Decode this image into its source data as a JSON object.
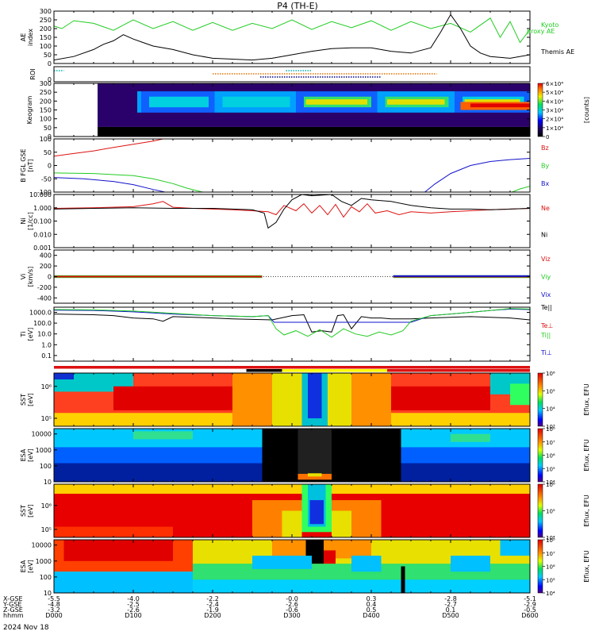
{
  "title": "P4 (TH-E)",
  "date_label": "2024 Nov 18",
  "colors": {
    "green": "#22cc22",
    "red": "#dd1111",
    "blue": "#1111cc",
    "black": "#000000",
    "roi_cyan": "#00b0b0",
    "roi_orange": "#e07000",
    "roi_navy": "#000080"
  },
  "chart_data": [
    {
      "type": "line",
      "panel": "ae",
      "ylabel": "AE index",
      "ylim": [
        0,
        300
      ],
      "yticks": [
        "0",
        "50",
        "100",
        "150",
        "200",
        "250",
        "300"
      ],
      "series": [
        {
          "name": "Kyoto proxy AE",
          "color": "green",
          "x": [
            0,
            0.4,
            1,
            2,
            3,
            4,
            5,
            6,
            7,
            8,
            9,
            10,
            11,
            12,
            13,
            14,
            15,
            16,
            17,
            18,
            19,
            20,
            21,
            22,
            22.5,
            23,
            23.5,
            24
          ],
          "y": [
            215,
            200,
            245,
            230,
            190,
            250,
            200,
            240,
            190,
            235,
            190,
            230,
            200,
            250,
            195,
            240,
            205,
            245,
            190,
            240,
            200,
            230,
            180,
            260,
            150,
            240,
            120,
            195
          ]
        },
        {
          "name": "Themis AE",
          "color": "black",
          "x": [
            0,
            1,
            2,
            2.5,
            3,
            3.5,
            4,
            4.5,
            5,
            6,
            7,
            8,
            9,
            10,
            11,
            12,
            13,
            14,
            15,
            16,
            17,
            18,
            19,
            19.5,
            20,
            20.5,
            21,
            21.5,
            22,
            23,
            24
          ],
          "y": [
            20,
            40,
            80,
            110,
            130,
            165,
            140,
            120,
            100,
            80,
            50,
            30,
            25,
            20,
            30,
            50,
            70,
            85,
            90,
            90,
            70,
            60,
            90,
            180,
            280,
            200,
            100,
            60,
            40,
            30,
            50
          ]
        }
      ]
    },
    {
      "type": "timeline",
      "panel": "roi",
      "ylabel": "ROI",
      "bars": [
        {
          "color": "roi_cyan",
          "x": [
            0,
            0.5
          ],
          "row": 0
        },
        {
          "color": "roi_cyan",
          "x": [
            11.7,
            13
          ],
          "row": 0
        },
        {
          "color": "roi_orange",
          "x": [
            8,
            19.3
          ],
          "row": 1
        },
        {
          "color": "roi_navy",
          "x": [
            10.4,
            16.5
          ],
          "row": 2
        }
      ]
    },
    {
      "type": "heatmap",
      "panel": "keogram",
      "ylabel": "Keogram",
      "ylim": [
        0,
        300
      ],
      "yticks": [
        "0",
        "50",
        "100",
        "150",
        "200",
        "250",
        "300"
      ],
      "zlabel": "[counts]",
      "zticks": [
        "0",
        "1×10⁴",
        "2×10⁴",
        "3×10⁴",
        "4×10⁴",
        "5×10⁴",
        "6×10⁴"
      ]
    },
    {
      "type": "line",
      "panel": "b",
      "ylabel": "B FGL GSE [nT]",
      "ylim": [
        -100,
        100
      ],
      "yticks": [
        "-100",
        "-50",
        "0",
        "50",
        "100"
      ],
      "series": [
        {
          "name": "Bz",
          "color": "red",
          "x": [
            0,
            1,
            2,
            3,
            4,
            5,
            5.5
          ],
          "y": [
            35,
            45,
            55,
            68,
            80,
            92,
            100
          ]
        },
        {
          "name": "By",
          "color": "green",
          "x": [
            0,
            2,
            4,
            5,
            6,
            6.7,
            7.5
          ],
          "y": [
            -28,
            -30,
            -38,
            -50,
            -68,
            -85,
            -100
          ]
        },
        {
          "name": "Bx",
          "color": "blue",
          "x": [
            0,
            1.5,
            3,
            4,
            5,
            5.6
          ],
          "y": [
            -45,
            -50,
            -60,
            -72,
            -90,
            -100
          ]
        },
        {
          "name": "Bx",
          "color": "blue",
          "x": [
            18.7,
            19.2,
            20,
            21,
            22,
            23,
            24
          ],
          "y": [
            -100,
            -70,
            -30,
            0,
            15,
            22,
            27
          ]
        },
        {
          "name": "By",
          "color": "green",
          "x": [
            23.1,
            23.5,
            24
          ],
          "y": [
            -100,
            -88,
            -78
          ]
        }
      ]
    },
    {
      "type": "line",
      "panel": "n",
      "log": true,
      "ylabel": "Ni [1/cc]",
      "ylim": [
        0.001,
        10
      ],
      "yticks": [
        "0.001",
        "0.010",
        "0.100",
        "1.000",
        "10.000"
      ],
      "series": [
        {
          "name": "Ne",
          "color": "red",
          "x": [
            0,
            2,
            4,
            5,
            5.5,
            6,
            7,
            8,
            9,
            10,
            10.8,
            11.2,
            11.6,
            12.2,
            12.6,
            13,
            13.4,
            13.8,
            14.2,
            14.6,
            15,
            15.4,
            15.8,
            16.2,
            16.8,
            17.4,
            18,
            19,
            20,
            21,
            22,
            23,
            24
          ],
          "y": [
            0.9,
            1,
            1.2,
            2,
            3,
            1.1,
            0.9,
            0.8,
            0.7,
            0.6,
            0.5,
            0.3,
            1.5,
            0.6,
            2,
            0.4,
            1.5,
            0.3,
            1.8,
            0.2,
            1.2,
            0.5,
            2,
            0.4,
            0.6,
            0.3,
            0.5,
            0.4,
            0.5,
            0.6,
            0.7,
            0.8,
            0.9
          ]
        },
        {
          "name": "Ni",
          "color": "black",
          "x": [
            0,
            2,
            4,
            6,
            8,
            9,
            10,
            10.6,
            10.8,
            11.2,
            11.6,
            12,
            12.5,
            13,
            14,
            14.5,
            15,
            15.5,
            16,
            17,
            18,
            19,
            20,
            21,
            22,
            23,
            24
          ],
          "y": [
            0.8,
            0.9,
            1,
            0.9,
            0.9,
            0.8,
            0.7,
            0.4,
            0.03,
            0.08,
            0.8,
            4,
            10,
            8,
            10,
            3,
            1.5,
            5,
            4,
            3,
            1.5,
            1,
            0.8,
            0.8,
            0.7,
            0.8,
            0.9
          ]
        }
      ]
    },
    {
      "type": "line",
      "panel": "v",
      "ylabel": "Vi [km/s]",
      "ylim": [
        -500,
        500
      ],
      "yticks": [
        "-400",
        "-200",
        "0",
        "200",
        "400"
      ],
      "series": [
        {
          "name": "Viz",
          "color": "red",
          "x": [
            0,
            10.5
          ],
          "y": [
            0,
            0
          ]
        },
        {
          "name": "Viz",
          "color": "red",
          "x": [
            17.1,
            24
          ],
          "y": [
            0,
            0
          ]
        },
        {
          "name": "Viy",
          "color": "green",
          "x": [
            0,
            24
          ],
          "y": [
            0,
            0
          ]
        },
        {
          "name": "Vix",
          "color": "blue",
          "x": [
            0,
            24
          ],
          "y": [
            0,
            0
          ]
        }
      ]
    },
    {
      "type": "line",
      "panel": "t",
      "log": true,
      "ylabel": "Ti [eV]",
      "ylim": [
        0.03,
        3000
      ],
      "yticks": [
        "0.1",
        "1.0",
        "10.0",
        "100.0",
        "1000.0"
      ],
      "series": [
        {
          "name": "Te",
          "color": "black",
          "x": [
            0,
            2,
            3,
            4,
            5,
            5.5,
            6,
            7,
            8,
            9,
            10,
            11,
            12,
            12.6,
            13,
            13.5,
            14,
            14.3,
            14.6,
            15,
            15.5,
            16,
            16.5,
            17,
            18,
            19,
            20,
            21,
            22,
            23,
            24
          ],
          "y": [
            700,
            600,
            500,
            300,
            250,
            150,
            400,
            350,
            300,
            250,
            220,
            200,
            500,
            600,
            15,
            20,
            15,
            500,
            600,
            30,
            400,
            300,
            300,
            250,
            250,
            300,
            350,
            400,
            350,
            300,
            200
          ]
        },
        {
          "name": "Ti",
          "color": "blue",
          "x": [
            0,
            2,
            4,
            6,
            8,
            10,
            10.8,
            11.1,
            18,
            19,
            20,
            21,
            22,
            23,
            24
          ],
          "y": [
            1600,
            1500,
            1100,
            700,
            500,
            400,
            500,
            120,
            120,
            500,
            700,
            1000,
            1500,
            2000,
            1800
          ]
        },
        {
          "name": "Ti||",
          "color": "green",
          "x": [
            0,
            2,
            4,
            6,
            8,
            10,
            10.8,
            11.2,
            11.6,
            12.2,
            12.8,
            13.4,
            14,
            14.6,
            15.2,
            15.8,
            16.4,
            17,
            17.6,
            18,
            19,
            20,
            21,
            22,
            23,
            24
          ],
          "y": [
            1800,
            1700,
            1300,
            800,
            500,
            400,
            500,
            30,
            8,
            20,
            6,
            25,
            5,
            30,
            10,
            6,
            15,
            8,
            20,
            150,
            500,
            700,
            1000,
            1500,
            2200,
            2000
          ]
        }
      ]
    },
    {
      "type": "timeline",
      "panel": "region",
      "bars": [
        {
          "color": "red",
          "x": [
            0,
            24
          ],
          "row": 0
        },
        {
          "color": "black",
          "x": [
            9.7,
            11.5
          ],
          "row": 1
        },
        {
          "color": "yellow",
          "x": [
            11.5,
            16.8
          ],
          "row": 1
        },
        {
          "color": "red",
          "x": [
            16.8,
            24
          ],
          "row": 1
        }
      ]
    },
    {
      "type": "heatmap",
      "panel": "sst_i",
      "ylabel": "SST [eV]",
      "ylim": [
        50000,
        2000000
      ],
      "yticks": [
        "10⁵",
        "10⁶"
      ],
      "zlabel": "Eflux, EFU",
      "zticks": [
        "10³",
        "10⁴",
        "10⁵",
        "10⁶"
      ]
    },
    {
      "type": "heatmap",
      "panel": "esa_i",
      "ylabel": "ESA [eV]",
      "ylim": [
        10,
        25000
      ],
      "yticks": [
        "10",
        "100",
        "1000",
        "10000"
      ],
      "zlabel": "Eflux, EFU",
      "zticks": [
        "10⁴",
        "10⁵",
        "10⁶",
        "10⁷",
        "10⁸"
      ]
    },
    {
      "type": "heatmap",
      "panel": "sst_e",
      "ylabel": "SST [eV]",
      "ylim": [
        50000,
        1500000
      ],
      "yticks": [
        "10⁵",
        "10⁶"
      ],
      "zlabel": "Eflux, EFU",
      "zticks": [
        "10⁴",
        "10⁵",
        "10⁶"
      ]
    },
    {
      "type": "heatmap",
      "panel": "esa_e",
      "ylabel": "ESA [eV]",
      "ylim": [
        10,
        25000
      ],
      "yticks": [
        "10",
        "100",
        "1000",
        "10000"
      ],
      "zlabel": "Eflux, EFU",
      "zticks": [
        "10⁴",
        "10⁵",
        "10⁶",
        "10⁷",
        "10⁸"
      ]
    }
  ],
  "orbit_axis": {
    "row_labels": [
      "X-GSE",
      "Y-GSE",
      "Z-GSE",
      "hhmm"
    ],
    "ticks": [
      {
        "hour": 0,
        "values": [
          "-5.5",
          "-4.8",
          "-3.2",
          "0000"
        ]
      },
      {
        "hour": 4,
        "values": [
          "-4.0",
          "-2.5",
          "-2.6",
          "0100"
        ]
      },
      {
        "hour": 8,
        "values": [
          "-2.2",
          "-2.4",
          "-1.9",
          "0200"
        ]
      },
      {
        "hour": 12,
        "values": [
          "-0.0",
          "-2.6",
          "-0.6",
          "0300"
        ]
      },
      {
        "hour": 16,
        "values": [
          "0.3",
          "0.4",
          "0.5",
          "0400"
        ]
      },
      {
        "hour": 20,
        "values": [
          "-2.8",
          "-2.7",
          "0.1",
          "0500"
        ]
      },
      {
        "hour": 24,
        "values": [
          "-5.1",
          "-2.9",
          "-0.5",
          "0600"
        ]
      }
    ]
  }
}
